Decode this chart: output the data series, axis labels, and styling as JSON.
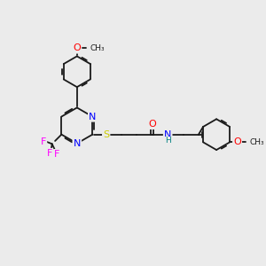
{
  "background_color": "#ebebeb",
  "bond_color": "#1a1a1a",
  "atom_colors": {
    "N": "#0000ff",
    "O": "#ff0000",
    "S": "#cccc00",
    "F": "#ff00ff",
    "H": "#008080",
    "C": "#1a1a1a"
  },
  "font_size": 8,
  "figsize": [
    3.0,
    3.0
  ],
  "dpi": 100
}
